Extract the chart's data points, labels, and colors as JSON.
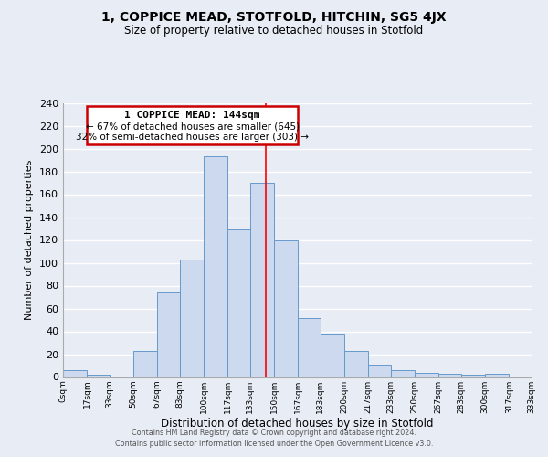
{
  "title": "1, COPPICE MEAD, STOTFOLD, HITCHIN, SG5 4JX",
  "subtitle": "Size of property relative to detached houses in Stotfold",
  "xlabel": "Distribution of detached houses by size in Stotfold",
  "ylabel": "Number of detached properties",
  "bar_color": "#ccd9ef",
  "bar_edge_color": "#6699cc",
  "background_color": "#e8edf5",
  "grid_color": "#ffffff",
  "tick_labels": [
    "0sqm",
    "17sqm",
    "33sqm",
    "50sqm",
    "67sqm",
    "83sqm",
    "100sqm",
    "117sqm",
    "133sqm",
    "150sqm",
    "167sqm",
    "183sqm",
    "200sqm",
    "217sqm",
    "233sqm",
    "250sqm",
    "267sqm",
    "283sqm",
    "300sqm",
    "317sqm",
    "333sqm"
  ],
  "bar_heights": [
    6,
    2,
    0,
    23,
    74,
    103,
    193,
    129,
    170,
    120,
    52,
    38,
    23,
    11,
    6,
    4,
    3,
    2,
    3,
    0
  ],
  "ylim": [
    0,
    240
  ],
  "yticks": [
    0,
    20,
    40,
    60,
    80,
    100,
    120,
    140,
    160,
    180,
    200,
    220,
    240
  ],
  "property_line_x": 144,
  "property_line_label": "1 COPPICE MEAD: 144sqm",
  "annotation_line1": "← 67% of detached houses are smaller (645)",
  "annotation_line2": "32% of semi-detached houses are larger (303) →",
  "footnote1": "Contains HM Land Registry data © Crown copyright and database right 2024.",
  "footnote2": "Contains public sector information licensed under the Open Government Licence v3.0.",
  "bin_edges": [
    0,
    17,
    33,
    50,
    67,
    83,
    100,
    117,
    133,
    150,
    167,
    183,
    200,
    217,
    233,
    250,
    267,
    283,
    300,
    317,
    333
  ]
}
